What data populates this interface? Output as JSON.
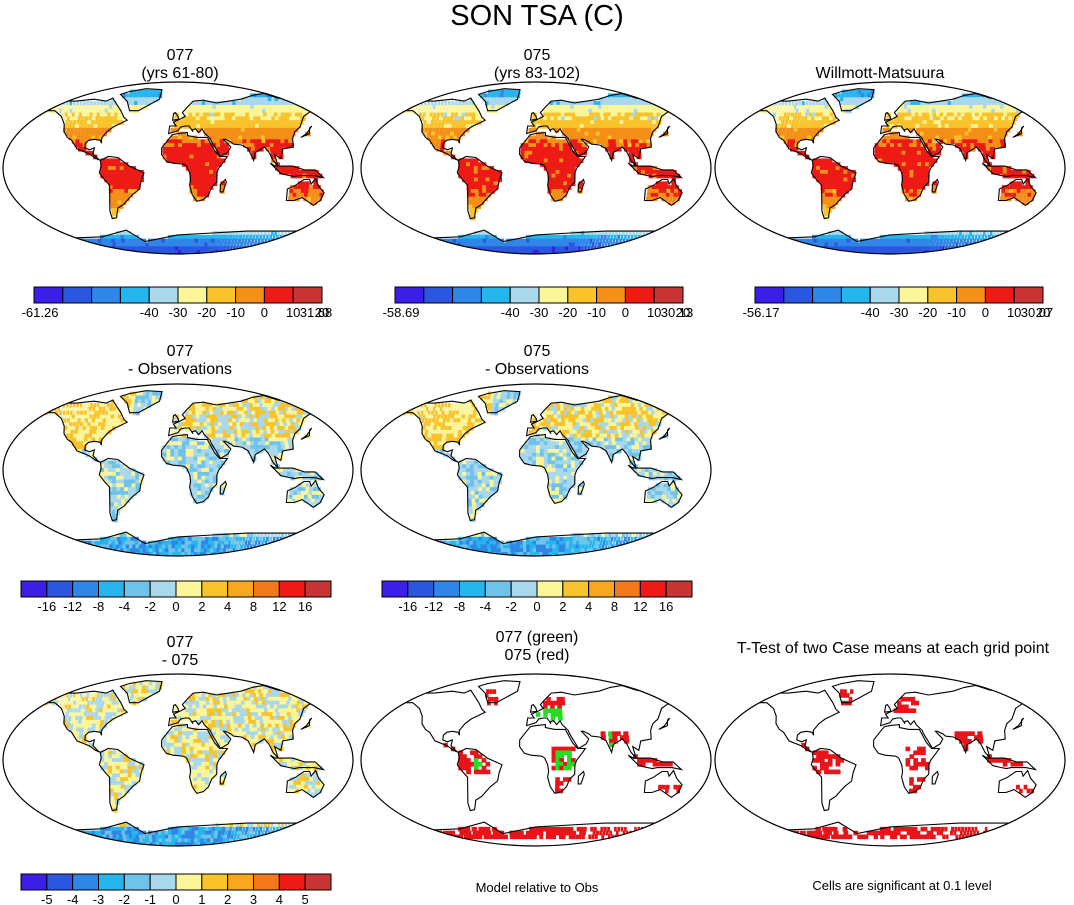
{
  "title": "SON TSA (C)",
  "colors": {
    "abs_scale": [
      "#3b1fe8",
      "#2b57e0",
      "#2f86e6",
      "#26b6ee",
      "#a9d7ec",
      "#fbf59a",
      "#f8c32b",
      "#f48f18",
      "#ee1a16",
      "#c93434"
    ],
    "diff_scale": [
      "#3b1fe8",
      "#2b57e0",
      "#2f86e6",
      "#26b6ee",
      "#6fc3ea",
      "#a9d7ec",
      "#fbf59a",
      "#f8c32b",
      "#f8a71f",
      "#f2781a",
      "#ee1a16",
      "#c93434"
    ],
    "sig_green": "#22dd22",
    "sig_red": "#e8141a"
  },
  "panels": {
    "p1": {
      "title": "077",
      "subtitle": "(yrs 61-80)",
      "style": "abs"
    },
    "p2": {
      "title": "075",
      "subtitle": "(yrs 83-102)",
      "style": "abs"
    },
    "p3": {
      "title": "Willmott-Matsuura",
      "style": "abs"
    },
    "p4": {
      "title": "077",
      "subtitle": "- Observations",
      "style": "diff_obs"
    },
    "p5": {
      "title": "075",
      "subtitle": "- Observations",
      "style": "diff_obs"
    },
    "p7": {
      "title": "077",
      "subtitle": "- 075",
      "style": "diff_case"
    },
    "p8": {
      "title": "077 (green)",
      "subtitle": "075 (red)",
      "style": "sig_both"
    },
    "p9": {
      "title": "T-Test of two Case means at each grid point",
      "style": "sig_red"
    }
  },
  "colorbars": {
    "cb1": [
      "-61.26",
      "-40",
      "-30",
      "-20",
      "-10",
      "0",
      "10",
      "20",
      "31.68"
    ],
    "cb2": [
      "-58.69",
      "-40",
      "-30",
      "-20",
      "-10",
      "0",
      "10",
      "20",
      "30.13"
    ],
    "cb3": [
      "-56.17",
      "-40",
      "-30",
      "-20",
      "-10",
      "0",
      "10",
      "20",
      "30.07"
    ],
    "cb4": [
      "-16",
      "-12",
      "-8",
      "-4",
      "-2",
      "0",
      "2",
      "4",
      "8",
      "12",
      "16"
    ],
    "cb5": [
      "-16",
      "-12",
      "-8",
      "-4",
      "-2",
      "0",
      "2",
      "4",
      "8",
      "12",
      "16"
    ],
    "cb7": [
      "-5",
      "-4",
      "-3",
      "-2",
      "-1",
      "0",
      "1",
      "2",
      "3",
      "4",
      "5"
    ]
  },
  "notes": {
    "model_rel": "Model relative to Obs",
    "cells_sig": "Cells are significant at 0.1 level"
  }
}
